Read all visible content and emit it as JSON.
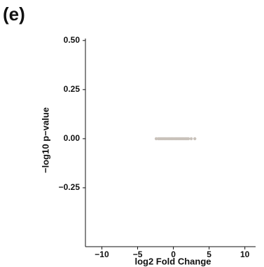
{
  "chart_data": {
    "type": "scatter",
    "panel_label": "(e)",
    "x_label": "log2 Fold Change",
    "y_label": "−log10 p−value",
    "series": [
      {
        "color": "#c9c2bb",
        "x": [
          -2.4,
          -2.1,
          -1.9,
          -1.7,
          -1.5,
          -1.3,
          -1.1,
          -0.9,
          -0.7,
          -0.5,
          -0.3,
          -0.1,
          0.1,
          0.3,
          0.5,
          0.7,
          0.9,
          1.1,
          1.3,
          1.5,
          1.7,
          1.9,
          2.1,
          2.5,
          3.0
        ],
        "y": [
          0,
          0,
          0,
          0,
          0,
          0,
          0,
          0,
          0,
          0,
          0,
          0,
          0,
          0,
          0,
          0,
          0,
          0,
          0,
          0,
          0,
          0,
          0,
          0,
          0
        ]
      }
    ],
    "xlim": [
      -12.3,
      11.5
    ],
    "xticks": [
      {
        "value": -10,
        "label": "−10"
      },
      {
        "value": -5,
        "label": "−5"
      },
      0,
      5,
      10
    ],
    "ylim": [
      -0.55,
      0.51
    ],
    "yticks": [
      {
        "value": -0.25,
        "label": "−0.25"
      },
      {
        "value": 0,
        "label": "0.00"
      },
      {
        "value": 0.25,
        "label": "0.25"
      },
      {
        "value": 0.5,
        "label": "0.50"
      }
    ]
  }
}
